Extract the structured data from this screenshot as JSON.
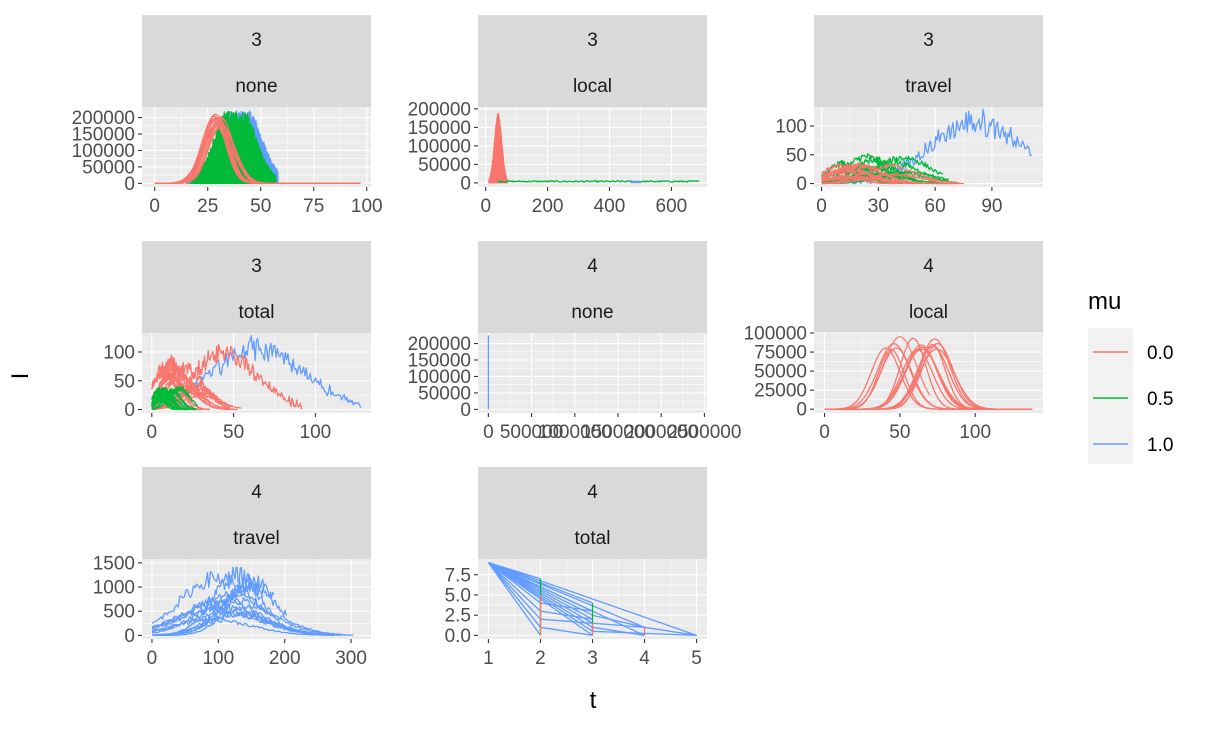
{
  "colors": {
    "mu_0_0": "#F8766D",
    "mu_0_5": "#00BA38",
    "mu_1_0": "#619CFF"
  },
  "chart_data": {
    "type": "line",
    "xlabel": "t",
    "ylabel": "I",
    "legend": {
      "title": "mu",
      "position": "right",
      "entries": [
        {
          "label": "0.0",
          "color": "#F8766D"
        },
        {
          "label": "0.5",
          "color": "#00BA38"
        },
        {
          "label": "1.0",
          "color": "#619CFF"
        }
      ]
    },
    "panels": [
      {
        "strip": [
          "3",
          "none"
        ],
        "xlim": [
          -6,
          102
        ],
        "ylim": [
          -11000,
          232000
        ],
        "xticks": [
          0,
          25,
          50,
          75,
          100
        ],
        "xtick_labels": [
          "0",
          "25",
          "50",
          "75",
          "100"
        ],
        "yticks": [
          0,
          50000,
          100000,
          150000,
          200000
        ],
        "ytick_labels": [
          "0",
          "50000",
          "100000",
          "150000",
          "200000"
        ],
        "series": [
          {
            "mu": "1.0",
            "style": "dense-spikes",
            "x_range": [
              15,
              58
            ],
            "peak_y": 220000,
            "peak_x": 40,
            "tail_to": 68
          },
          {
            "mu": "0.5",
            "style": "dense-spikes",
            "x_range": [
              17,
              57
            ],
            "peak_y": 220000,
            "peak_x": 38,
            "tail_to": 68
          },
          {
            "mu": "0.0",
            "style": "epidemic-curves",
            "peak_y": 210000,
            "peak_x": [
              28,
              32
            ],
            "width": 6,
            "tail_to": 97
          }
        ]
      },
      {
        "strip": [
          "3",
          "local"
        ],
        "xlim": [
          -25,
          715
        ],
        "ylim": [
          -11000,
          205000
        ],
        "xticks": [
          0,
          200,
          400,
          600
        ],
        "xtick_labels": [
          "0",
          "200",
          "400",
          "600"
        ],
        "yticks": [
          0,
          50000,
          100000,
          150000,
          200000
        ],
        "ytick_labels": [
          "0",
          "50000",
          "100000",
          "150000",
          "200000"
        ],
        "series": [
          {
            "mu": "0.0",
            "style": "filled-burst",
            "x_range": [
              10,
              70
            ],
            "peak_y": 190000,
            "peak_x": 40
          },
          {
            "mu": "0.5",
            "style": "flat-noise",
            "x_range": [
              40,
              690
            ],
            "level_y": 4000
          },
          {
            "mu": "1.0",
            "style": "flat-noise",
            "x_range": [
              470,
              500
            ],
            "level_y": 2000
          }
        ]
      },
      {
        "strip": [
          "3",
          "travel"
        ],
        "xlim": [
          -4,
          117
        ],
        "ylim": [
          -6,
          133
        ],
        "xticks": [
          0,
          30,
          60,
          90
        ],
        "xtick_labels": [
          "0",
          "30",
          "60",
          "90"
        ],
        "yticks": [
          0,
          50,
          100
        ],
        "ytick_labels": [
          "0",
          "50",
          "100"
        ],
        "series": [
          {
            "mu": "1.0",
            "style": "noisy-walk",
            "x_range": [
              0,
              111
            ],
            "peak_y": 125,
            "peak_x": 82
          },
          {
            "mu": "0.5",
            "style": "noisy-walks",
            "x_range": [
              0,
              75
            ],
            "max_y": 55
          },
          {
            "mu": "0.0",
            "style": "noisy-walks",
            "x_range": [
              0,
              78
            ],
            "max_y": 40
          }
        ]
      },
      {
        "strip": [
          "3",
          "total"
        ],
        "xlim": [
          -6,
          134
        ],
        "ylim": [
          -6,
          133
        ],
        "xticks": [
          0,
          50,
          100
        ],
        "xtick_labels": [
          "0",
          "50",
          "100"
        ],
        "yticks": [
          0,
          50,
          100
        ],
        "ytick_labels": [
          "0",
          "50",
          "100"
        ],
        "series": [
          {
            "mu": "1.0",
            "style": "noisy-walk",
            "x_range": [
              0,
              128
            ],
            "peak_y": 125,
            "peak_x": 65
          },
          {
            "mu": "0.0",
            "style": "noisy-walk",
            "x_range": [
              0,
              92
            ],
            "peak_y": 112,
            "peak_x": 45
          },
          {
            "mu": "0.0",
            "style": "noisy-walks",
            "x_range": [
              0,
              55
            ],
            "max_y": 105
          },
          {
            "mu": "0.5",
            "style": "noisy-walks",
            "x_range": [
              0,
              30
            ],
            "max_y": 45
          }
        ]
      },
      {
        "strip": [
          "4",
          "none"
        ],
        "xlim": [
          -120000,
          2530000
        ],
        "ylim": [
          -11000,
          232000
        ],
        "xticks": [
          0,
          500000,
          1000000,
          1500000,
          2000000,
          2500000
        ],
        "xtick_labels": [
          "0",
          "500000",
          "1000000",
          "1500000",
          "2000000",
          "2500000"
        ],
        "yticks": [
          0,
          50000,
          100000,
          150000,
          200000
        ],
        "ytick_labels": [
          "0",
          "50000",
          "100000",
          "150000",
          "200000"
        ],
        "series": [
          {
            "mu": "1.0",
            "style": "vertical-line",
            "x": 0,
            "peak_y": 225000
          }
        ]
      },
      {
        "strip": [
          "4",
          "local"
        ],
        "xlim": [
          -7,
          145
        ],
        "ylim": [
          -5000,
          100000
        ],
        "xticks": [
          0,
          50,
          100
        ],
        "xtick_labels": [
          "0",
          "50",
          "100"
        ],
        "yticks": [
          0,
          25000,
          50000,
          75000,
          100000
        ],
        "ytick_labels": [
          "0",
          "25000",
          "50000",
          "75000",
          "100000"
        ],
        "series": [
          {
            "mu": "0.0",
            "style": "epidemic-curves",
            "peak_y": 95000,
            "peak_x": [
              40,
              75
            ],
            "width": 10,
            "tail_to": 138
          }
        ]
      },
      {
        "strip": [
          "4",
          "travel"
        ],
        "xlim": [
          -15,
          330
        ],
        "ylim": [
          -75,
          1580
        ],
        "xticks": [
          0,
          100,
          200,
          300
        ],
        "xtick_labels": [
          "0",
          "100",
          "200",
          "300"
        ],
        "yticks": [
          0,
          500,
          1000,
          1500
        ],
        "ytick_labels": [
          "0",
          "500",
          "1000",
          "1500"
        ],
        "series": [
          {
            "mu": "1.0",
            "style": "noisy-walks",
            "x_range": [
              0,
              310
            ],
            "max_y": 1460,
            "peak_x": 120
          }
        ]
      },
      {
        "strip": [
          "4",
          "total"
        ],
        "xlim": [
          0.8,
          5.2
        ],
        "ylim": [
          -0.45,
          9.45
        ],
        "xticks": [
          1,
          2,
          3,
          4,
          5
        ],
        "xtick_labels": [
          "1",
          "2",
          "3",
          "4",
          "5"
        ],
        "yticks": [
          0,
          2.5,
          5,
          7.5
        ],
        "ytick_labels": [
          "0.0",
          "2.5",
          "5.0",
          "7.5"
        ],
        "series": [
          {
            "mu": "1.0",
            "style": "fan",
            "from": [
              1,
              9
            ],
            "points": [
              [
                2,
                0
              ],
              [
                2,
                1
              ],
              [
                2,
                2
              ],
              [
                2,
                3
              ],
              [
                2,
                4
              ],
              [
                2,
                6
              ],
              [
                2,
                7
              ],
              [
                3,
                0
              ],
              [
                3,
                0.5
              ],
              [
                3,
                1
              ],
              [
                3,
                1.5
              ],
              [
                3,
                2
              ],
              [
                3,
                2.5
              ],
              [
                3,
                3
              ],
              [
                3,
                4
              ],
              [
                4,
                0
              ],
              [
                4,
                1
              ],
              [
                5,
                0
              ]
            ]
          },
          {
            "mu": "0.5",
            "style": "vertical-segments",
            "points": [
              [
                2,
                0,
                7
              ],
              [
                3,
                0,
                4
              ]
            ]
          },
          {
            "mu": "0.0",
            "style": "vertical-segments",
            "points": [
              [
                2,
                0,
                5
              ],
              [
                3,
                0,
                1.5
              ],
              [
                4,
                0,
                1
              ]
            ]
          }
        ]
      }
    ]
  }
}
